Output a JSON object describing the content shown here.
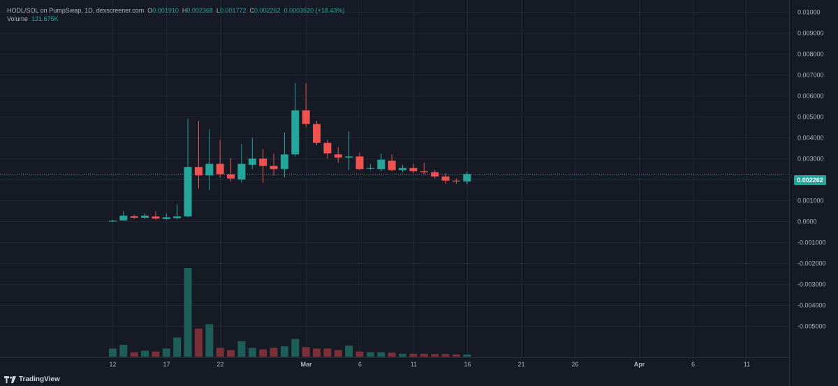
{
  "legend": {
    "symbol": "HODL/SOL on PumpSwap, 1D, dexscreener.com",
    "o_label": "O",
    "o": "0.001910",
    "h_label": "H",
    "h": "0.002368",
    "l_label": "L",
    "l": "0.001772",
    "c_label": "C",
    "c": "0.002262",
    "change": "0.0003520 (+18.43%)",
    "volume_label": "Volume",
    "volume": "131.675K"
  },
  "last_price": "0.002262",
  "brand": "TradingView",
  "colors": {
    "background": "#161a25",
    "up": "#26a69a",
    "down": "#ef5350",
    "up_volume": "#1d5e58",
    "down_volume": "#7a3038"
  },
  "chart_data": {
    "type": "candlestick",
    "yticks": [
      "0.01000",
      "0.009000",
      "0.008000",
      "0.007000",
      "0.006000",
      "0.005000",
      "0.004000",
      "0.003000",
      "0.002000",
      "0.001000",
      "0.0000",
      "-0.001000",
      "-0.002000",
      "-0.003000",
      "-0.004000",
      "-0.005000"
    ],
    "ylim": [
      -0.00565,
      0.0101
    ],
    "xticks": [
      {
        "label": "12",
        "day": 0,
        "bold": false
      },
      {
        "label": "17",
        "day": 5,
        "bold": false
      },
      {
        "label": "22",
        "day": 10,
        "bold": false
      },
      {
        "label": "Mar",
        "day": 18,
        "bold": true
      },
      {
        "label": "6",
        "day": 23,
        "bold": false
      },
      {
        "label": "11",
        "day": 28,
        "bold": false
      },
      {
        "label": "16",
        "day": 33,
        "bold": false
      },
      {
        "label": "21",
        "day": 38,
        "bold": false
      },
      {
        "label": "26",
        "day": 43,
        "bold": false
      },
      {
        "label": "Apr",
        "day": 49,
        "bold": true
      },
      {
        "label": "6",
        "day": 54,
        "bold": false
      },
      {
        "label": "11",
        "day": 59,
        "bold": false
      }
    ],
    "xlim": [
      -10.5,
      63
    ],
    "grid": true,
    "last_price": 0.002262,
    "candles": [
      {
        "day": 0,
        "o": 0.0,
        "h": 8e-05,
        "l": -2e-05,
        "c": 4e-05,
        "v": 5.5
      },
      {
        "day": 1,
        "o": 5e-05,
        "h": 0.0005,
        "l": 3e-05,
        "c": 0.00028,
        "v": 8.0
      },
      {
        "day": 2,
        "o": 0.00025,
        "h": 0.00032,
        "l": 0.00014,
        "c": 0.00018,
        "v": 3.0
      },
      {
        "day": 3,
        "o": 0.00018,
        "h": 0.0004,
        "l": 0.00012,
        "c": 0.00028,
        "v": 4.0
      },
      {
        "day": 4,
        "o": 0.00024,
        "h": 0.0005,
        "l": 8e-05,
        "c": 0.00014,
        "v": 3.5
      },
      {
        "day": 5,
        "o": 0.00012,
        "h": 0.00038,
        "l": 8e-05,
        "c": 0.0002,
        "v": 5.5
      },
      {
        "day": 6,
        "o": 0.00016,
        "h": 0.00082,
        "l": 0.00012,
        "c": 0.00024,
        "v": 13.0
      },
      {
        "day": 7,
        "o": 0.00024,
        "h": 0.0049,
        "l": 0.0002,
        "c": 0.0026,
        "v": 60.0
      },
      {
        "day": 8,
        "o": 0.0026,
        "h": 0.0048,
        "l": 0.00158,
        "c": 0.0022,
        "v": 19.0
      },
      {
        "day": 9,
        "o": 0.0022,
        "h": 0.0044,
        "l": 0.0015,
        "c": 0.00275,
        "v": 22.0
      },
      {
        "day": 10,
        "o": 0.00275,
        "h": 0.0039,
        "l": 0.0021,
        "c": 0.00225,
        "v": 6.0
      },
      {
        "day": 11,
        "o": 0.00225,
        "h": 0.003,
        "l": 0.0019,
        "c": 0.00205,
        "v": 4.5
      },
      {
        "day": 12,
        "o": 0.002,
        "h": 0.0037,
        "l": 0.00185,
        "c": 0.00275,
        "v": 10.5
      },
      {
        "day": 13,
        "o": 0.0027,
        "h": 0.004,
        "l": 0.0025,
        "c": 0.003,
        "v": 6.0
      },
      {
        "day": 14,
        "o": 0.003,
        "h": 0.00345,
        "l": 0.00185,
        "c": 0.00265,
        "v": 5.0
      },
      {
        "day": 15,
        "o": 0.00265,
        "h": 0.00325,
        "l": 0.0022,
        "c": 0.0025,
        "v": 6.0
      },
      {
        "day": 16,
        "o": 0.0025,
        "h": 0.00425,
        "l": 0.0021,
        "c": 0.0032,
        "v": 7.0
      },
      {
        "day": 17,
        "o": 0.0032,
        "h": 0.0066,
        "l": 0.0031,
        "c": 0.0053,
        "v": 12.0
      },
      {
        "day": 18,
        "o": 0.0053,
        "h": 0.0066,
        "l": 0.0045,
        "c": 0.00465,
        "v": 6.5
      },
      {
        "day": 19,
        "o": 0.00465,
        "h": 0.0048,
        "l": 0.00365,
        "c": 0.00375,
        "v": 5.5
      },
      {
        "day": 20,
        "o": 0.00375,
        "h": 0.0039,
        "l": 0.003,
        "c": 0.00325,
        "v": 5.5
      },
      {
        "day": 21,
        "o": 0.0032,
        "h": 0.00355,
        "l": 0.0028,
        "c": 0.00305,
        "v": 4.5
      },
      {
        "day": 22,
        "o": 0.00305,
        "h": 0.0043,
        "l": 0.00245,
        "c": 0.0031,
        "v": 7.5
      },
      {
        "day": 23,
        "o": 0.0031,
        "h": 0.0033,
        "l": 0.00245,
        "c": 0.0025,
        "v": 3.5
      },
      {
        "day": 24,
        "o": 0.00255,
        "h": 0.00275,
        "l": 0.00245,
        "c": 0.00255,
        "v": 3.0
      },
      {
        "day": 25,
        "o": 0.0025,
        "h": 0.00325,
        "l": 0.0024,
        "c": 0.00295,
        "v": 3.0
      },
      {
        "day": 26,
        "o": 0.0029,
        "h": 0.0032,
        "l": 0.0024,
        "c": 0.00245,
        "v": 2.8
      },
      {
        "day": 27,
        "o": 0.00245,
        "h": 0.0027,
        "l": 0.00235,
        "c": 0.00255,
        "v": 2.0
      },
      {
        "day": 28,
        "o": 0.00255,
        "h": 0.00275,
        "l": 0.0023,
        "c": 0.0024,
        "v": 2.0
      },
      {
        "day": 29,
        "o": 0.0024,
        "h": 0.0028,
        "l": 0.00225,
        "c": 0.00235,
        "v": 2.0
      },
      {
        "day": 30,
        "o": 0.00235,
        "h": 0.00245,
        "l": 0.00205,
        "c": 0.00215,
        "v": 1.8
      },
      {
        "day": 31,
        "o": 0.00215,
        "h": 0.0023,
        "l": 0.0018,
        "c": 0.00195,
        "v": 1.8
      },
      {
        "day": 32,
        "o": 0.00195,
        "h": 0.00205,
        "l": 0.0018,
        "c": 0.00191,
        "v": 1.5
      },
      {
        "day": 33,
        "o": 0.00191,
        "h": 0.00237,
        "l": 0.00177,
        "c": 0.00226,
        "v": 1.5
      }
    ]
  }
}
